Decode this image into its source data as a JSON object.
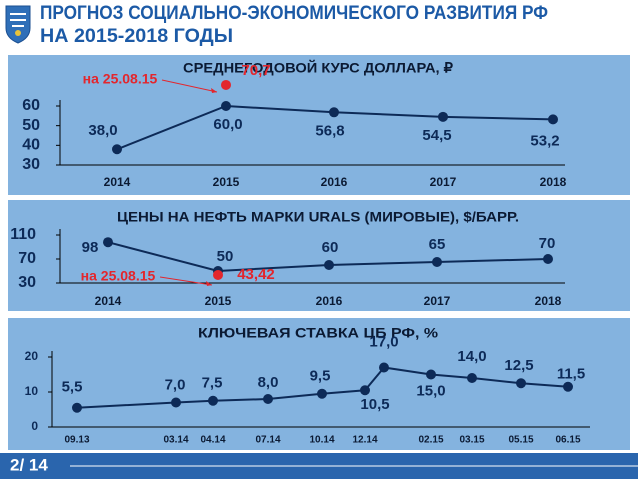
{
  "header": {
    "title_line1": "ПРОГНОЗ СОЦИАЛЬНО-ЭКОНОМИЧЕСКОГО РАЗВИТИЯ РФ",
    "title_line2": "НА 2015-2018 ГОДЫ"
  },
  "page_number": "2/ 14",
  "chart_data": [
    {
      "type": "line",
      "title": "СРЕДНЕГОДОВОЙ КУРС ДОЛЛАРА, ₽",
      "categories": [
        "2014",
        "2015",
        "2016",
        "2017",
        "2018"
      ],
      "series": [
        {
          "color": "#0d2a57",
          "values": [
            38.0,
            60.0,
            56.8,
            54.5,
            53.2
          ],
          "value_labels": [
            "38,0",
            "60,0",
            "56,8",
            "54,5",
            "53,2"
          ]
        },
        {
          "color": "#e3262d",
          "values": [
            null,
            70.7,
            null,
            null,
            null
          ],
          "value_labels": [
            null,
            "70,7",
            null,
            null,
            null
          ]
        }
      ],
      "annotation": "на 25.08.15",
      "ylim": [
        30,
        60
      ],
      "yticks": [
        30,
        40,
        50,
        60
      ]
    },
    {
      "type": "line",
      "title": "ЦЕНЫ НА НЕФТЬ МАРКИ URALS (МИРОВЫЕ), $/БАРР.",
      "categories": [
        "2014",
        "2015",
        "2016",
        "2017",
        "2018"
      ],
      "series": [
        {
          "color": "#0d2a57",
          "values": [
            98,
            50,
            60,
            65,
            70
          ]
        },
        {
          "color": "#e3262d",
          "values": [
            null,
            43.42,
            null,
            null,
            null
          ],
          "value_labels": [
            null,
            "43,42",
            null,
            null,
            null
          ]
        }
      ],
      "annotation": "на 25.08.15",
      "ylim": [
        30,
        110
      ],
      "yticks": [
        30,
        70,
        110
      ]
    },
    {
      "type": "line",
      "title": "КЛЮЧЕВАЯ СТАВКА ЦБ РФ, %",
      "categories": [
        "09.13",
        "03.14",
        "04.14",
        "07.14",
        "10.14",
        "12.14",
        null,
        "02.15",
        "03.15",
        "05.15",
        "06.15"
      ],
      "series": [
        {
          "color": "#0d2a57",
          "values": [
            5.5,
            7.0,
            7.5,
            8.0,
            9.5,
            10.5,
            17.0,
            15.0,
            14.0,
            12.5,
            11.5
          ],
          "value_labels": [
            "5,5",
            "7,0",
            "7,5",
            "8,0",
            "9,5",
            "10,5",
            "17,0",
            "15,0",
            "14,0",
            "12,5",
            "11,5"
          ]
        }
      ],
      "ylim": [
        0,
        20
      ],
      "yticks": [
        0,
        10,
        20
      ]
    }
  ]
}
